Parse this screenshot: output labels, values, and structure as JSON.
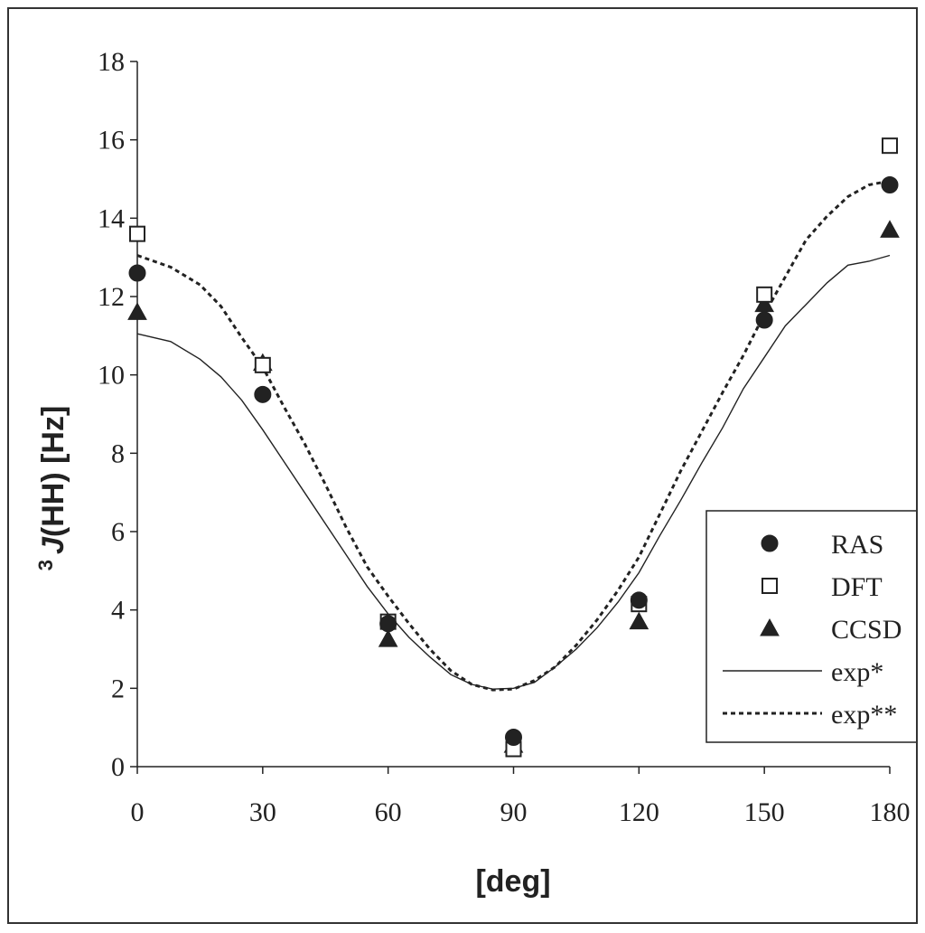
{
  "chart_data": {
    "type": "scatter",
    "xlabel": "[deg]",
    "ylabel_sup": "3",
    "ylabel_italic": "J",
    "ylabel_rest": "(HH) [Hz]",
    "xlim": [
      0,
      180
    ],
    "ylim": [
      0,
      18
    ],
    "x_ticks": [
      "0",
      "30",
      "60",
      "90",
      "120",
      "150",
      "180"
    ],
    "y_ticks": [
      "0",
      "2",
      "4",
      "6",
      "8",
      "10",
      "12",
      "14",
      "16",
      "18"
    ],
    "grid": false,
    "legend_position": "right",
    "series": [
      {
        "name": "RAS",
        "kind": "points",
        "marker": "circle",
        "x": [
          0,
          30,
          60,
          90,
          120,
          150,
          180
        ],
        "y": [
          12.6,
          9.5,
          3.65,
          0.75,
          4.25,
          11.4,
          14.85
        ]
      },
      {
        "name": "DFT",
        "kind": "points",
        "marker": "square",
        "x": [
          0,
          30,
          60,
          90,
          120,
          150,
          180
        ],
        "y": [
          13.6,
          10.25,
          3.7,
          0.45,
          4.15,
          12.05,
          15.85
        ]
      },
      {
        "name": "CCSD",
        "kind": "points",
        "marker": "triangle",
        "x": [
          0,
          30,
          60,
          90,
          120,
          150,
          180
        ],
        "y": [
          11.6,
          10.3,
          3.25,
          0.55,
          3.7,
          11.8,
          13.7
        ]
      },
      {
        "name": "exp*",
        "kind": "line",
        "style": "solid",
        "x": [
          0,
          8,
          15,
          20,
          25,
          30,
          40,
          50,
          55,
          60,
          65,
          70,
          75,
          80,
          85,
          90,
          95,
          100,
          105,
          110,
          115,
          120,
          125,
          130,
          135,
          140,
          145,
          150,
          155,
          160,
          165,
          170,
          175,
          180
        ],
        "y": [
          11.05,
          10.85,
          10.4,
          9.95,
          9.35,
          8.6,
          7.0,
          5.4,
          4.6,
          3.9,
          3.3,
          2.8,
          2.35,
          2.1,
          1.98,
          2.0,
          2.15,
          2.55,
          3.0,
          3.55,
          4.2,
          4.95,
          5.9,
          6.8,
          7.75,
          8.65,
          9.65,
          10.45,
          11.25,
          11.8,
          12.35,
          12.8,
          12.9,
          13.05
        ]
      },
      {
        "name": "exp**",
        "kind": "line",
        "style": "dotted",
        "x": [
          0,
          8,
          15,
          20,
          25,
          30,
          35,
          40,
          45,
          50,
          55,
          60,
          65,
          70,
          75,
          80,
          85,
          90,
          95,
          100,
          105,
          110,
          115,
          120,
          125,
          130,
          135,
          140,
          145,
          150,
          155,
          160,
          165,
          170,
          175,
          180
        ],
        "y": [
          13.05,
          12.75,
          12.3,
          11.75,
          10.95,
          10.2,
          9.2,
          8.25,
          7.2,
          6.1,
          5.1,
          4.35,
          3.65,
          3.0,
          2.45,
          2.1,
          1.96,
          1.98,
          2.2,
          2.55,
          3.1,
          3.75,
          4.5,
          5.35,
          6.45,
          7.55,
          8.55,
          9.55,
          10.5,
          11.55,
          12.5,
          13.45,
          14.05,
          14.55,
          14.85,
          14.95
        ]
      }
    ]
  }
}
